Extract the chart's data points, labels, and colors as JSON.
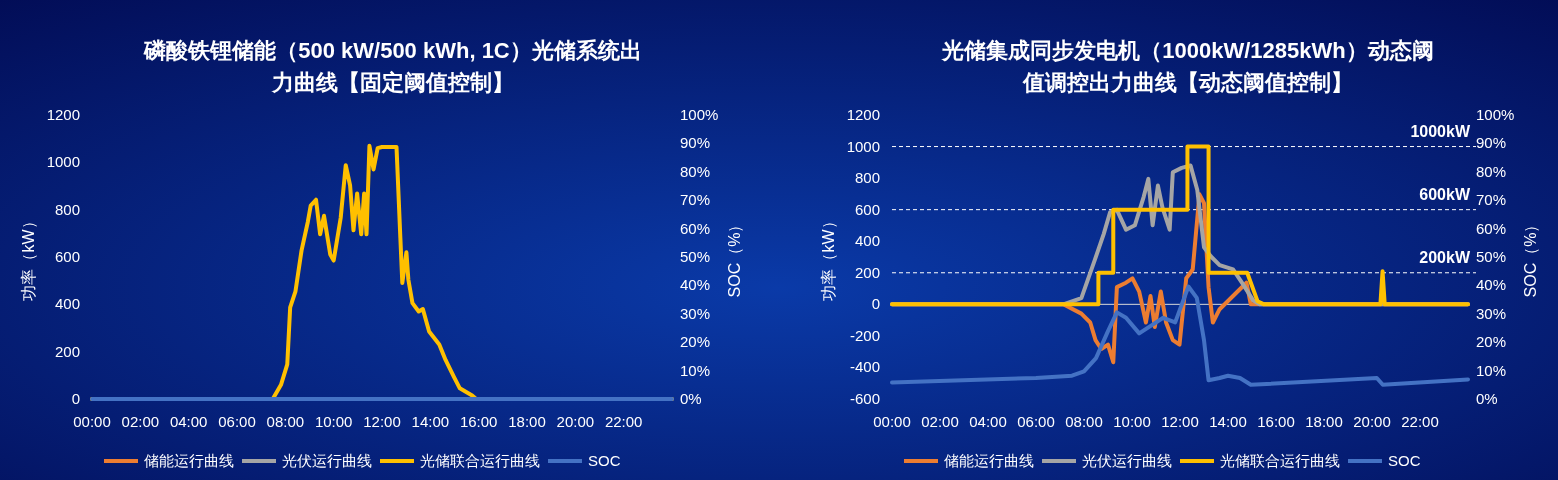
{
  "chart_data": [
    {
      "type": "line",
      "title": "磷酸铁锂储能（500 kW/500 kWh, 1C）光储系统出力曲线【固定阈值控制】",
      "ylabel": "功率（kW）",
      "y2label": "SOC（%）",
      "legend": "bottom",
      "xlim": [
        0,
        24
      ],
      "xticks": [
        {
          "value": 0,
          "label": "00:00"
        },
        {
          "value": 2,
          "label": "02:00"
        },
        {
          "value": 4,
          "label": "04:00"
        },
        {
          "value": 6,
          "label": "06:00"
        },
        {
          "value": 8,
          "label": "08:00"
        },
        {
          "value": 10,
          "label": "10:00"
        },
        {
          "value": 12,
          "label": "12:00"
        },
        {
          "value": 14,
          "label": "14:00"
        },
        {
          "value": 16,
          "label": "16:00"
        },
        {
          "value": 18,
          "label": "18:00"
        },
        {
          "value": 20,
          "label": "20:00"
        },
        {
          "value": 22,
          "label": "22:00"
        }
      ],
      "ylim": [
        0,
        1200
      ],
      "yticks": [
        0,
        200,
        400,
        600,
        800,
        1000,
        1200
      ],
      "y2lim": [
        0,
        100
      ],
      "y2ticks": [
        {
          "value": 0,
          "label": "0%"
        },
        {
          "value": 10,
          "label": "10%"
        },
        {
          "value": 20,
          "label": "20%"
        },
        {
          "value": 30,
          "label": "30%"
        },
        {
          "value": 40,
          "label": "40%"
        },
        {
          "value": 50,
          "label": "50%"
        },
        {
          "value": 60,
          "label": "60%"
        },
        {
          "value": 70,
          "label": "70%"
        },
        {
          "value": 80,
          "label": "80%"
        },
        {
          "value": 90,
          "label": "90%"
        },
        {
          "value": 100,
          "label": "100%"
        }
      ],
      "series": [
        {
          "name": "储能运行曲线",
          "color": "#ed7d31",
          "values": [
            null
          ]
        },
        {
          "name": "光伏运行曲线",
          "color": "#a5a5a5",
          "values": [
            null
          ]
        },
        {
          "name": "光储联合运行曲线",
          "color": "#ffc000",
          "x": [
            0,
            7,
            7.48,
            7.82,
            8.08,
            8.2,
            8.42,
            8.67,
            8.93,
            9.05,
            9.27,
            9.44,
            9.6,
            9.86,
            10.0,
            10.29,
            10.5,
            10.68,
            10.82,
            10.97,
            11.14,
            11.26,
            11.36,
            11.48,
            11.65,
            11.82,
            12.0,
            12.6,
            12.76,
            12.84,
            13.01,
            13.09,
            13.26,
            13.52,
            13.69,
            13.95,
            14.37,
            14.63,
            14.97,
            15.22,
            15.73,
            15.9,
            24
          ],
          "values": [
            0,
            0,
            0,
            60,
            146,
            387,
            455,
            627,
            748,
            817,
            842,
            696,
            774,
            610,
            585,
            765,
            988,
            902,
            713,
            868,
            696,
            868,
            696,
            1070,
            970,
            1060,
            1065,
            1065,
            680,
            490,
            620,
            505,
            405,
            370,
            380,
            285,
            230,
            165,
            95,
            45,
            15,
            0,
            0
          ]
        },
        {
          "name": "SOC",
          "color": "#4472c4",
          "axis": "y2",
          "x": [
            0,
            24
          ],
          "values": [
            0,
            0
          ]
        }
      ]
    },
    {
      "type": "line",
      "title": "光储集成同步发电机（1000kW/1285kWh）动态阈值调控出力曲线【动态阈值控制】",
      "ylabel": "功率（kW）",
      "y2label": "SOC（%）",
      "legend": "bottom",
      "xlim": [
        0,
        24
      ],
      "xticks": [
        {
          "value": 0,
          "label": "00:00"
        },
        {
          "value": 2,
          "label": "02:00"
        },
        {
          "value": 4,
          "label": "04:00"
        },
        {
          "value": 6,
          "label": "06:00"
        },
        {
          "value": 8,
          "label": "08:00"
        },
        {
          "value": 10,
          "label": "10:00"
        },
        {
          "value": 12,
          "label": "12:00"
        },
        {
          "value": 14,
          "label": "14:00"
        },
        {
          "value": 16,
          "label": "16:00"
        },
        {
          "value": 18,
          "label": "18:00"
        },
        {
          "value": 20,
          "label": "20:00"
        },
        {
          "value": 22,
          "label": "22:00"
        }
      ],
      "ylim": [
        -600,
        1200
      ],
      "yticks": [
        -600,
        -400,
        -200,
        0,
        200,
        400,
        600,
        800,
        1000,
        1200
      ],
      "y2lim": [
        0,
        100
      ],
      "y2ticks": [
        {
          "value": 0,
          "label": "0%"
        },
        {
          "value": 10,
          "label": "10%"
        },
        {
          "value": 20,
          "label": "20%"
        },
        {
          "value": 30,
          "label": "30%"
        },
        {
          "value": 40,
          "label": "40%"
        },
        {
          "value": 50,
          "label": "50%"
        },
        {
          "value": 60,
          "label": "60%"
        },
        {
          "value": 70,
          "label": "70%"
        },
        {
          "value": 80,
          "label": "80%"
        },
        {
          "value": 90,
          "label": "90%"
        },
        {
          "value": 100,
          "label": "100%"
        }
      ],
      "ref_lines": [
        {
          "axis": "y",
          "value": 1000,
          "label": "1000kW",
          "color": "#ffffff",
          "line_style": "dashed"
        },
        {
          "axis": "y",
          "value": 600,
          "label": "600kW",
          "color": "#ffffff",
          "line_style": "dashed"
        },
        {
          "axis": "y",
          "value": 200,
          "label": "200kW",
          "color": "#ffffff",
          "line_style": "dashed"
        }
      ],
      "series": [
        {
          "name": "储能运行曲线",
          "color": "#ed7d31",
          "x": [
            0,
            7.14,
            7.89,
            8.26,
            8.48,
            8.72,
            9.0,
            9.22,
            9.37,
            9.75,
            10.02,
            10.3,
            10.58,
            10.77,
            10.95,
            11.2,
            11.42,
            11.7,
            11.98,
            12.26,
            12.53,
            12.81,
            13.0,
            13.19,
            13.37,
            13.65,
            14.21,
            14.77,
            14.95,
            24
          ],
          "values": [
            0,
            0,
            -59,
            -115,
            -227,
            -283,
            -255,
            -367,
            109,
            137,
            165,
            81,
            -115,
            53,
            -143,
            81,
            -115,
            -227,
            -255,
            165,
            221,
            697,
            641,
            109,
            -115,
            -31,
            53,
            137,
            0,
            0
          ]
        },
        {
          "name": "光伏运行曲线",
          "color": "#a5a5a5",
          "x": [
            0,
            7.14,
            7.89,
            8.44,
            8.82,
            9.09,
            9.37,
            9.75,
            10.12,
            10.49,
            10.68,
            10.86,
            11.08,
            11.27,
            11.57,
            11.7,
            12.07,
            12.44,
            12.72,
            13.0,
            13.28,
            13.65,
            14.21,
            14.58,
            15.05,
            15.32,
            24
          ],
          "values": [
            0,
            0,
            39,
            277,
            445,
            585,
            599,
            473,
            501,
            683,
            795,
            501,
            753,
            613,
            473,
            837,
            865,
            880,
            725,
            361,
            305,
            249,
            221,
            137,
            25,
            0,
            0
          ]
        },
        {
          "name": "光储联合运行曲线",
          "color": "#ffc000",
          "x": [
            0,
            8.6,
            8.6,
            9.22,
            9.22,
            12.31,
            12.31,
            13.19,
            13.19,
            14.8,
            15.23,
            15.5,
            20.35,
            20.44,
            20.53,
            24
          ],
          "values": [
            0,
            0,
            200,
            200,
            600,
            600,
            1000,
            1000,
            200,
            200,
            20,
            0,
            0,
            210,
            0,
            0
          ]
        },
        {
          "name": "SOC",
          "color": "#4472c4",
          "axis": "y2",
          "x": [
            0,
            6,
            7.5,
            8,
            8.5,
            9,
            9.37,
            9.75,
            10.3,
            10.86,
            11.3,
            11.8,
            12.35,
            12.7,
            13.0,
            13.19,
            13.65,
            14.0,
            14.5,
            14.95,
            20.2,
            20.45,
            24
          ],
          "values": [
            5.8,
            7.4,
            8.2,
            9.7,
            14.4,
            23.9,
            30.5,
            28.6,
            23.1,
            26.2,
            28.6,
            27,
            39.6,
            35.6,
            20.7,
            6.6,
            7.4,
            8.2,
            7.4,
            5.0,
            7.4,
            5.0,
            6.9
          ]
        }
      ]
    }
  ]
}
